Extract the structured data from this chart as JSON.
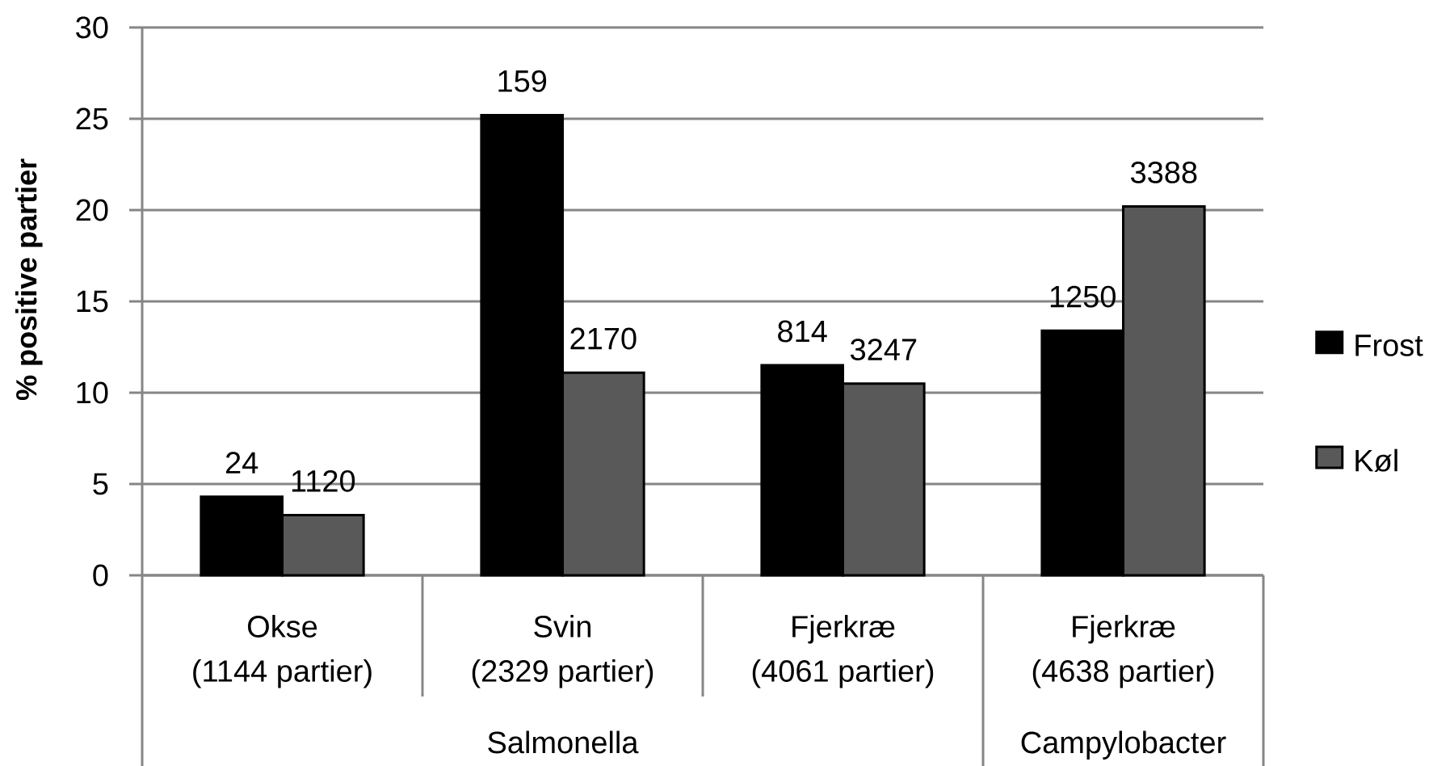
{
  "chart_data": {
    "type": "bar",
    "ylabel": "% positive partier",
    "categories": [
      "Okse (1144 partier)",
      "Svin (2329 partier)",
      "Fjerkræ (4061 partier)",
      "Fjerkræ (4638 partier)"
    ],
    "series": [
      {
        "name": "Frost",
        "color": "#000000",
        "values": [
          4.3,
          25.2,
          11.5,
          13.4
        ]
      },
      {
        "name": "Køl",
        "color": "#595959",
        "values": [
          3.3,
          11.1,
          10.5,
          20.2
        ]
      }
    ],
    "annotations": [
      "Salmonella",
      "Campylobacter",
      {
        "text": "24",
        "x": "Okse (1144 partier)",
        "y": 4.3
      },
      {
        "text": "159",
        "x": "Svin (2329 partier)",
        "y": 25.2
      },
      {
        "text": "814",
        "x": "Fjerkræ (4061 partier)",
        "y": 11.5
      },
      {
        "text": "1250",
        "x": "Fjerkræ (4638 partier)",
        "y": 13.4
      },
      {
        "text": "1120",
        "x": "Okse (1144 partier)",
        "y": 3.3
      },
      {
        "text": "2170",
        "x": "Svin (2329 partier)",
        "y": 11.1
      },
      {
        "text": "3247",
        "x": "Fjerkræ (4061 partier)",
        "y": 10.5
      },
      {
        "text": "3388",
        "x": "Fjerkræ (4638 partier)",
        "y": 20.2
      }
    ],
    "ylim": [
      0,
      30
    ],
    "yticks": [
      0,
      5,
      10,
      15,
      20,
      25,
      30
    ],
    "grid": "y",
    "legend": "right"
  }
}
